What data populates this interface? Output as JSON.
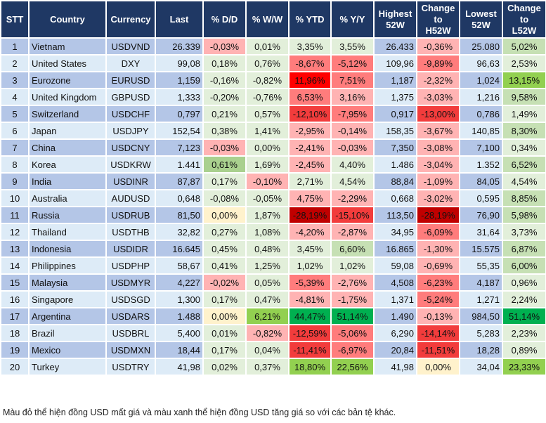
{
  "headers": [
    "STT",
    "Country",
    "Currency",
    "Last",
    "% D/D",
    "% W/W",
    "% YTD",
    "% Y/Y",
    "Highest 52W",
    "Change to H52W",
    "Lowest 52W",
    "Change to L52W"
  ],
  "rows": [
    {
      "stt": "1",
      "country": "Vietnam",
      "currency": "USDVND",
      "last": "26.339",
      "dd": "-0,03%",
      "ww": "0,01%",
      "ytd": "3,35%",
      "yy": "3,55%",
      "h52": "26.433",
      "ch": "-0,36%",
      "l52": "25.080",
      "cl": "5,02%",
      "colors": [
        "r1",
        "g1",
        "g1",
        "g1",
        "r1",
        "g2"
      ]
    },
    {
      "stt": "2",
      "country": "United States",
      "currency": "DXY",
      "last": "99,08",
      "dd": "0,18%",
      "ww": "0,76%",
      "ytd": "-8,67%",
      "yy": "-5,12%",
      "h52": "109,96",
      "ch": "-9,89%",
      "l52": "96,63",
      "cl": "2,53%",
      "colors": [
        "g1",
        "g1",
        "r2",
        "r2",
        "r2",
        "g1"
      ]
    },
    {
      "stt": "3",
      "country": "Eurozone",
      "currency": "EURUSD",
      "last": "1,159",
      "dd": "-0,16%",
      "ww": "-0,82%",
      "ytd": "11,96%",
      "yy": "7,51%",
      "h52": "1,187",
      "ch": "-2,32%",
      "l52": "1,024",
      "cl": "13,15%",
      "colors": [
        "g1",
        "g1",
        "r4",
        "r2",
        "r1",
        "g4"
      ]
    },
    {
      "stt": "4",
      "country": "United Kingdom",
      "currency": "GBPUSD",
      "last": "1,333",
      "dd": "-0,20%",
      "ww": "-0,76%",
      "ytd": "6,53%",
      "yy": "3,16%",
      "h52": "1,375",
      "ch": "-3,03%",
      "l52": "1,216",
      "cl": "9,58%",
      "colors": [
        "g1",
        "g1",
        "r2",
        "r1",
        "r1",
        "g2"
      ]
    },
    {
      "stt": "5",
      "country": "Switzerland",
      "currency": "USDCHF",
      "last": "0,797",
      "dd": "0,21%",
      "ww": "0,57%",
      "ytd": "-12,10%",
      "yy": "-7,95%",
      "h52": "0,917",
      "ch": "-13,00%",
      "l52": "0,786",
      "cl": "1,49%",
      "colors": [
        "g1",
        "g1",
        "r3",
        "r2",
        "r3",
        "g1"
      ]
    },
    {
      "stt": "6",
      "country": "Japan",
      "currency": "USDJPY",
      "last": "152,54",
      "dd": "0,38%",
      "ww": "1,41%",
      "ytd": "-2,95%",
      "yy": "-0,14%",
      "h52": "158,35",
      "ch": "-3,67%",
      "l52": "140,85",
      "cl": "8,30%",
      "colors": [
        "g1",
        "g1",
        "r1",
        "r1",
        "r1",
        "g2"
      ]
    },
    {
      "stt": "7",
      "country": "China",
      "currency": "USDCNY",
      "last": "7,123",
      "dd": "-0,03%",
      "ww": "0,00%",
      "ytd": "-2,41%",
      "yy": "-0,03%",
      "h52": "7,350",
      "ch": "-3,08%",
      "l52": "7,100",
      "cl": "0,34%",
      "colors": [
        "r1",
        "g1",
        "r1",
        "r1",
        "r1",
        "g1"
      ]
    },
    {
      "stt": "8",
      "country": "Korea",
      "currency": "USDKRW",
      "last": "1.441",
      "dd": "0,61%",
      "ww": "1,69%",
      "ytd": "-2,45%",
      "yy": "4,40%",
      "h52": "1.486",
      "ch": "-3,04%",
      "l52": "1.352",
      "cl": "6,52%",
      "colors": [
        "g3",
        "g1",
        "r1",
        "g1",
        "r1",
        "g2"
      ]
    },
    {
      "stt": "9",
      "country": "India",
      "currency": "USDINR",
      "last": "87,87",
      "dd": "0,17%",
      "ww": "-0,10%",
      "ytd": "2,71%",
      "yy": "4,54%",
      "h52": "88,84",
      "ch": "-1,09%",
      "l52": "84,05",
      "cl": "4,54%",
      "colors": [
        "g1",
        "r1",
        "g1",
        "g1",
        "r1",
        "g1"
      ]
    },
    {
      "stt": "10",
      "country": "Australia",
      "currency": "AUDUSD",
      "last": "0,648",
      "dd": "-0,08%",
      "ww": "-0,05%",
      "ytd": "4,75%",
      "yy": "-2,29%",
      "h52": "0,668",
      "ch": "-3,02%",
      "l52": "0,595",
      "cl": "8,85%",
      "colors": [
        "g1",
        "g1",
        "r1",
        "r1",
        "r1",
        "g2"
      ]
    },
    {
      "stt": "11",
      "country": "Russia",
      "currency": "USDRUB",
      "last": "81,50",
      "dd": "0,00%",
      "ww": "1,87%",
      "ytd": "-28,19%",
      "yy": "-15,10%",
      "h52": "113,50",
      "ch": "-28,19%",
      "l52": "76,90",
      "cl": "5,98%",
      "colors": [
        "y",
        "g1",
        "r5",
        "r3",
        "r5",
        "g2"
      ]
    },
    {
      "stt": "12",
      "country": "Thailand",
      "currency": "USDTHB",
      "last": "32,82",
      "dd": "0,27%",
      "ww": "1,08%",
      "ytd": "-4,20%",
      "yy": "-2,87%",
      "h52": "34,95",
      "ch": "-6,09%",
      "l52": "31,64",
      "cl": "3,73%",
      "colors": [
        "g1",
        "g1",
        "r1",
        "r1",
        "r2",
        "g1"
      ]
    },
    {
      "stt": "13",
      "country": "Indonesia",
      "currency": "USDIDR",
      "last": "16.645",
      "dd": "0,45%",
      "ww": "0,48%",
      "ytd": "3,45%",
      "yy": "6,60%",
      "h52": "16.865",
      "ch": "-1,30%",
      "l52": "15.575",
      "cl": "6,87%",
      "colors": [
        "g1",
        "g1",
        "g1",
        "g2",
        "r1",
        "g2"
      ]
    },
    {
      "stt": "14",
      "country": "Philippines",
      "currency": "USDPHP",
      "last": "58,67",
      "dd": "0,41%",
      "ww": "1,25%",
      "ytd": "1,02%",
      "yy": "1,02%",
      "h52": "59,08",
      "ch": "-0,69%",
      "l52": "55,35",
      "cl": "6,00%",
      "colors": [
        "g1",
        "g1",
        "g1",
        "g1",
        "r1",
        "g2"
      ]
    },
    {
      "stt": "15",
      "country": "Malaysia",
      "currency": "USDMYR",
      "last": "4,227",
      "dd": "-0,02%",
      "ww": "0,05%",
      "ytd": "-5,39%",
      "yy": "-2,76%",
      "h52": "4,508",
      "ch": "-6,23%",
      "l52": "4,187",
      "cl": "0,96%",
      "colors": [
        "r1",
        "g1",
        "r2",
        "r1",
        "r2",
        "g1"
      ]
    },
    {
      "stt": "16",
      "country": "Singapore",
      "currency": "USDSGD",
      "last": "1,300",
      "dd": "0,17%",
      "ww": "0,47%",
      "ytd": "-4,81%",
      "yy": "-1,75%",
      "h52": "1,371",
      "ch": "-5,24%",
      "l52": "1,271",
      "cl": "2,24%",
      "colors": [
        "g1",
        "g1",
        "r1",
        "r1",
        "r2",
        "g1"
      ]
    },
    {
      "stt": "17",
      "country": "Argentina",
      "currency": "USDARS",
      "last": "1.488",
      "dd": "0,00%",
      "ww": "6,21%",
      "ytd": "44,47%",
      "yy": "51,14%",
      "h52": "1.490",
      "ch": "-0,13%",
      "l52": "984,50",
      "cl": "51,14%",
      "colors": [
        "y",
        "g4",
        "g5",
        "g5",
        "r1",
        "g5"
      ]
    },
    {
      "stt": "18",
      "country": "Brazil",
      "currency": "USDBRL",
      "last": "5,400",
      "dd": "0,01%",
      "ww": "-0,82%",
      "ytd": "-12,59%",
      "yy": "-5,06%",
      "h52": "6,290",
      "ch": "-14,14%",
      "l52": "5,283",
      "cl": "2,23%",
      "colors": [
        "g1",
        "r1",
        "r3",
        "r2",
        "r3",
        "g1"
      ]
    },
    {
      "stt": "19",
      "country": "Mexico",
      "currency": "USDMXN",
      "last": "18,44",
      "dd": "0,17%",
      "ww": "0,04%",
      "ytd": "-11,41%",
      "yy": "-6,97%",
      "h52": "20,84",
      "ch": "-11,51%",
      "l52": "18,28",
      "cl": "0,89%",
      "colors": [
        "g1",
        "g1",
        "r3",
        "r2",
        "r3",
        "g1"
      ]
    },
    {
      "stt": "20",
      "country": "Turkey",
      "currency": "USDTRY",
      "last": "41,98",
      "dd": "0,02%",
      "ww": "0,37%",
      "ytd": "18,80%",
      "yy": "22,56%",
      "h52": "41,98",
      "ch": "0,00%",
      "l52": "34,04",
      "cl": "23,33%",
      "colors": [
        "g1",
        "g1",
        "g4",
        "g4",
        "y",
        "g4"
      ]
    }
  ],
  "footnote": "Màu đỏ thể hiện đồng USD mất giá và màu xanh thể hiện đồng USD tăng giá so với các bản tệ khác.",
  "palette": {
    "header": "#1f3864",
    "row_odd": "#b4c6e7",
    "row_even": "#ddebf7",
    "g1": "#e2efda",
    "g2": "#c6e0b4",
    "g3": "#a9d08e",
    "g4": "#92d050",
    "g5": "#00b050",
    "r1": "#ffb3b3",
    "r2": "#ff7c7c",
    "r3": "#f23c3c",
    "r4": "#ff0000",
    "r5": "#c00000",
    "y": "#fff2cc"
  }
}
